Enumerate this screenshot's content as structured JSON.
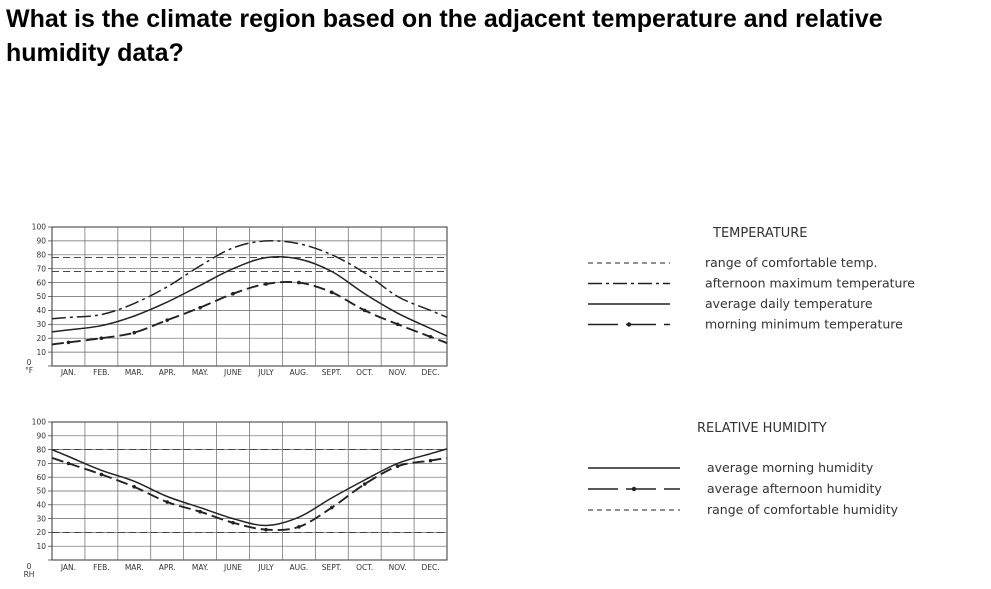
{
  "question": "What is the climate region based on the adjacent temperature and relative humidity data?",
  "chart_data": [
    {
      "type": "line",
      "title": "TEMPERATURE",
      "axis_unit_label": "°F",
      "categories": [
        "JAN.",
        "FEB.",
        "MAR.",
        "APR.",
        "MAY.",
        "JUNE",
        "JULY",
        "AUG.",
        "SEPT.",
        "OCT.",
        "NOV.",
        "DEC."
      ],
      "yticks": [
        "0",
        "10",
        "20",
        "30",
        "40",
        "50",
        "60",
        "70",
        "80",
        "90",
        "100"
      ],
      "ylim": [
        0,
        100
      ],
      "grid": true,
      "legend_position": "right",
      "comfort_range": [
        68,
        78
      ],
      "series": [
        {
          "name": "range of comfortable temp.",
          "style": "dashed",
          "values": [
            68,
            68,
            68,
            68,
            68,
            68,
            68,
            68,
            68,
            68,
            68,
            68
          ]
        },
        {
          "name": "afternoon maximum temperature",
          "style": "dashdot",
          "values": [
            35,
            37,
            45,
            57,
            72,
            85,
            90,
            88,
            80,
            67,
            50,
            40
          ]
        },
        {
          "name": "average daily temperature",
          "style": "solid",
          "values": [
            26,
            29,
            36,
            46,
            58,
            70,
            78,
            77,
            68,
            52,
            38,
            27
          ]
        },
        {
          "name": "morning minimum temperature",
          "style": "dashdotmarker",
          "values": [
            17,
            20,
            24,
            33,
            42,
            52,
            59,
            60,
            53,
            40,
            30,
            21
          ]
        }
      ]
    },
    {
      "type": "line",
      "title": "RELATIVE HUMIDITY",
      "axis_unit_label": "RH",
      "categories": [
        "JAN.",
        "FEB.",
        "MAR.",
        "APR.",
        "MAY.",
        "JUNE",
        "JULY",
        "AUG.",
        "SEPT.",
        "OCT.",
        "NOV.",
        "DEC."
      ],
      "yticks": [
        "0",
        "10",
        "20",
        "30",
        "40",
        "50",
        "60",
        "70",
        "80",
        "90",
        "100"
      ],
      "ylim": [
        0,
        100
      ],
      "grid": true,
      "legend_position": "right",
      "comfort_range": [
        20,
        80
      ],
      "series": [
        {
          "name": "average morning humidity",
          "style": "solid",
          "values": [
            75,
            65,
            57,
            46,
            38,
            30,
            25,
            31,
            45,
            58,
            70,
            77
          ]
        },
        {
          "name": "average afternoon humidity",
          "style": "dashdotmarker",
          "values": [
            70,
            62,
            53,
            42,
            35,
            27,
            22,
            24,
            38,
            55,
            68,
            72
          ]
        },
        {
          "name": "range of comfortable humidity",
          "style": "dashed",
          "values": [
            80,
            80,
            80,
            80,
            80,
            80,
            80,
            80,
            80,
            80,
            80,
            80
          ]
        }
      ]
    }
  ]
}
